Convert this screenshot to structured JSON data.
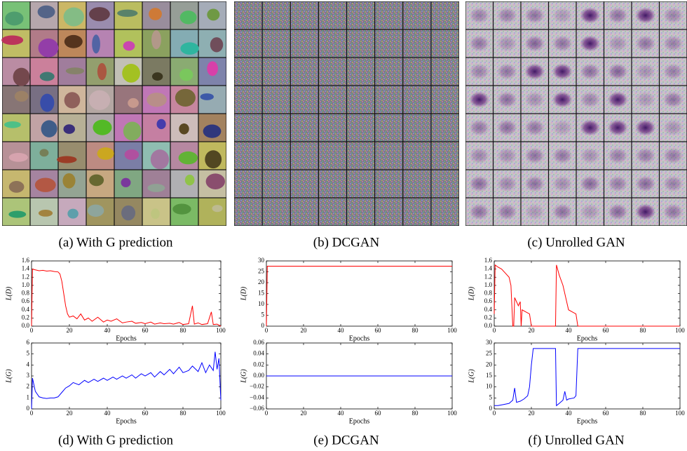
{
  "captions": [
    "(a) With G prediction",
    "(b) DCGAN",
    "(c) Unrolled GAN",
    "(d) With G prediction",
    "(e) DCGAN",
    "(f) Unrolled GAN"
  ],
  "chart_data": [
    {
      "type": "line",
      "ylabel": "L(D)",
      "xlabel": "Epochs",
      "color": "#ff0000",
      "xlim": [
        0,
        100
      ],
      "xticks": [
        0,
        20,
        40,
        60,
        80,
        100
      ],
      "ylim": [
        0,
        1.6
      ],
      "yticks": [
        {
          "value": 0,
          "label": "0.0"
        },
        0.2,
        0.4,
        0.6,
        0.8,
        {
          "value": 1,
          "label": "1.0"
        },
        1.2,
        1.4,
        1.6
      ],
      "x": [
        0,
        0.5,
        2,
        4,
        6,
        8,
        10,
        12,
        14,
        15,
        16,
        17,
        18,
        19,
        20,
        22,
        24,
        26,
        28,
        30,
        32,
        35,
        38,
        40,
        42,
        45,
        48,
        50,
        53,
        55,
        58,
        60,
        63,
        65,
        68,
        70,
        73,
        75,
        78,
        80,
        83,
        85,
        86,
        88,
        90,
        93,
        95,
        96,
        98,
        100
      ],
      "values": [
        0,
        1.4,
        1.38,
        1.36,
        1.37,
        1.35,
        1.36,
        1.34,
        1.33,
        1.28,
        1.1,
        0.8,
        0.5,
        0.3,
        0.22,
        0.25,
        0.18,
        0.3,
        0.15,
        0.2,
        0.12,
        0.22,
        0.1,
        0.15,
        0.12,
        0.18,
        0.08,
        0.1,
        0.12,
        0.07,
        0.09,
        0.06,
        0.1,
        0.05,
        0.08,
        0.06,
        0.07,
        0.05,
        0.09,
        0.04,
        0.06,
        0.5,
        0.05,
        0.08,
        0.04,
        0.06,
        0.35,
        0.04,
        0.05,
        0
      ]
    },
    {
      "type": "line",
      "ylabel": "L(G)",
      "xlabel": "Epochs",
      "color": "#0000ff",
      "xlim": [
        0,
        100
      ],
      "xticks": [
        0,
        20,
        40,
        60,
        80,
        100
      ],
      "ylim": [
        0,
        6
      ],
      "yticks": [
        0,
        1,
        2,
        3,
        4,
        5,
        6
      ],
      "x": [
        0,
        0.5,
        2,
        4,
        6,
        8,
        10,
        12,
        14,
        16,
        18,
        20,
        22,
        25,
        28,
        30,
        33,
        35,
        38,
        40,
        43,
        45,
        48,
        50,
        53,
        55,
        58,
        60,
        63,
        65,
        68,
        70,
        73,
        75,
        78,
        80,
        83,
        85,
        88,
        90,
        92,
        94,
        96,
        97,
        98,
        99,
        100
      ],
      "values": [
        0,
        2.8,
        1.6,
        1.1,
        1.0,
        0.95,
        1.0,
        1.0,
        1.1,
        1.5,
        1.9,
        2.1,
        2.4,
        2.2,
        2.6,
        2.4,
        2.7,
        2.5,
        2.8,
        2.6,
        2.9,
        2.7,
        3.0,
        2.8,
        3.1,
        2.8,
        3.2,
        3.0,
        3.3,
        2.9,
        3.4,
        3.1,
        3.6,
        3.2,
        3.8,
        3.3,
        3.5,
        3.9,
        3.4,
        4.2,
        3.3,
        4.0,
        3.5,
        5.2,
        3.6,
        4.6,
        0.8
      ]
    },
    {
      "type": "line",
      "ylabel": "L(D)",
      "xlabel": "Epochs",
      "color": "#ff0000",
      "xlim": [
        0,
        100
      ],
      "xticks": [
        0,
        20,
        40,
        60,
        80,
        100
      ],
      "ylim": [
        0,
        30
      ],
      "yticks": [
        0,
        5,
        10,
        15,
        20,
        25,
        30
      ],
      "x": [
        0,
        0.5,
        1,
        100
      ],
      "values": [
        0,
        27.6,
        27.6,
        27.6
      ]
    },
    {
      "type": "line",
      "ylabel": "L(G)",
      "xlabel": "Epochs",
      "color": "#0000ff",
      "xlim": [
        0,
        100
      ],
      "xticks": [
        0,
        20,
        40,
        60,
        80,
        100
      ],
      "ylim": [
        -0.06,
        0.06
      ],
      "yticks": [
        {
          "value": -0.06,
          "label": "−0.06"
        },
        {
          "value": -0.04,
          "label": "−0.04"
        },
        {
          "value": -0.02,
          "label": "−0.02"
        },
        {
          "value": 0,
          "label": "0.00"
        },
        0.02,
        0.04,
        0.06
      ],
      "x": [
        0,
        100
      ],
      "values": [
        0,
        0
      ]
    },
    {
      "type": "line",
      "ylabel": "L(D)",
      "xlabel": "Epochs",
      "color": "#ff0000",
      "xlim": [
        0,
        100
      ],
      "xticks": [
        0,
        20,
        40,
        60,
        80,
        100
      ],
      "ylim": [
        0,
        1.6
      ],
      "yticks": [
        {
          "value": 0,
          "label": "0.0"
        },
        0.2,
        0.4,
        0.6,
        0.8,
        {
          "value": 1,
          "label": "1.0"
        },
        1.2,
        1.4,
        1.6
      ],
      "x": [
        0,
        0.5,
        2,
        4,
        6,
        8,
        9,
        10,
        10.5,
        11,
        12,
        13,
        14,
        14.5,
        15,
        17,
        19,
        20,
        33,
        33.5,
        35,
        37,
        39,
        40,
        42,
        44,
        45,
        100
      ],
      "values": [
        0.3,
        1.5,
        1.45,
        1.4,
        1.3,
        1.2,
        1.0,
        0,
        0,
        0.7,
        0.6,
        0.5,
        0.6,
        0,
        0.4,
        0.35,
        0.3,
        0,
        0,
        1.5,
        1.25,
        1.0,
        0.6,
        0.4,
        0.35,
        0.3,
        0,
        0
      ]
    },
    {
      "type": "line",
      "ylabel": "L(G)",
      "xlabel": "Epochs",
      "color": "#0000ff",
      "xlim": [
        0,
        100
      ],
      "xticks": [
        0,
        20,
        40,
        60,
        80,
        100
      ],
      "ylim": [
        0,
        30
      ],
      "yticks": [
        0,
        5,
        10,
        15,
        20,
        25,
        30
      ],
      "x": [
        0,
        2,
        5,
        8,
        10,
        11,
        12,
        14,
        16,
        18,
        19,
        20,
        21,
        33,
        33.5,
        35,
        37,
        38,
        39,
        40,
        43,
        44,
        45,
        100
      ],
      "values": [
        1.5,
        1.5,
        2,
        2.5,
        4,
        9.5,
        3,
        3.5,
        4.5,
        6,
        10,
        20,
        27.5,
        27.5,
        1.5,
        2.5,
        4,
        8,
        4,
        4.5,
        5,
        6,
        27.5,
        27.5
      ]
    }
  ]
}
